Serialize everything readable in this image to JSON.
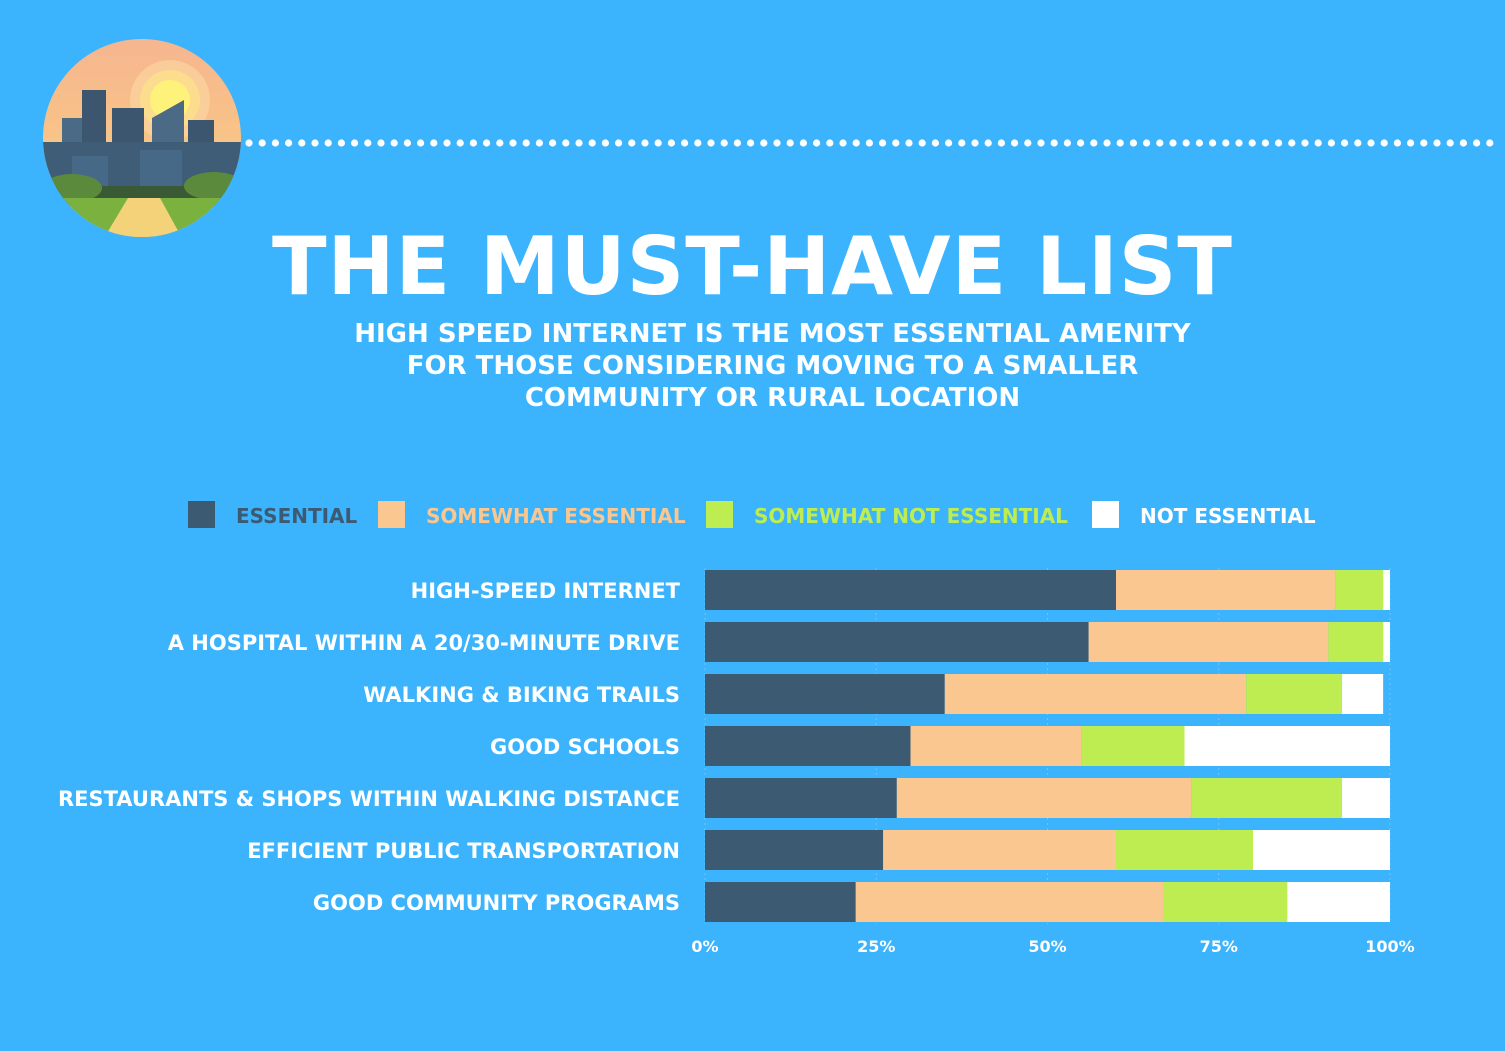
{
  "header": {
    "title": "THE MUST-HAVE LIST",
    "subtitle_lines": [
      "HIGH SPEED INTERNET IS THE MOST ESSENTIAL AMENITY",
      "FOR THOSE CONSIDERING MOVING TO A SMALLER",
      "COMMUNITY OR RURAL LOCATION"
    ]
  },
  "chart_data": {
    "type": "bar",
    "orientation": "horizontal",
    "stacked": true,
    "categories": [
      "HIGH-SPEED INTERNET",
      "A HOSPITAL WITHIN A 20/30-MINUTE DRIVE",
      "WALKING & BIKING TRAILS",
      "GOOD SCHOOLS",
      "RESTAURANTS & SHOPS WITHIN WALKING DISTANCE",
      "EFFICIENT PUBLIC TRANSPORTATION",
      "GOOD COMMUNITY PROGRAMS"
    ],
    "series": [
      {
        "name": "ESSENTIAL",
        "color": "#3d5a73",
        "values": [
          60,
          56,
          35,
          30,
          28,
          26,
          22
        ]
      },
      {
        "name": "SOMEWHAT ESSENTIAL",
        "color": "#f9c78f",
        "values": [
          32,
          35,
          44,
          25,
          43,
          34,
          45
        ]
      },
      {
        "name": "SOMEWHAT NOT ESSENTIAL",
        "color": "#bded50",
        "values": [
          7,
          8,
          14,
          15,
          22,
          20,
          18
        ]
      },
      {
        "name": "NOT ESSENTIAL",
        "color": "#ffffff",
        "values": [
          1,
          1,
          6,
          30,
          7,
          20,
          15
        ]
      }
    ],
    "x_ticks": [
      "0%",
      "25%",
      "50%",
      "75%",
      "100%"
    ],
    "xlim": [
      0,
      100
    ],
    "legend_position": "top",
    "grid": true
  }
}
